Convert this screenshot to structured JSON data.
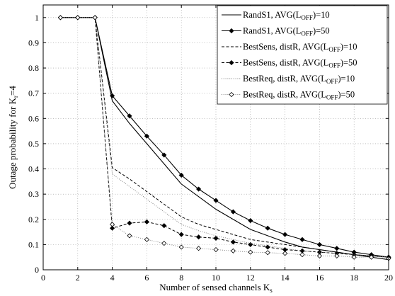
{
  "chart_data": {
    "type": "line",
    "xlabel": "Number of sensed channels K",
    "xlabel_sub": "s",
    "ylabel": "Outage probability for K",
    "ylabel_sub": "r",
    "ylabel_tail": "=4",
    "xlim": [
      0,
      20
    ],
    "ylim": [
      0,
      1.05
    ],
    "xticks": [
      0,
      2,
      4,
      6,
      8,
      10,
      12,
      14,
      16,
      18,
      20
    ],
    "yticks": [
      0,
      0.1,
      0.2,
      0.3,
      0.4,
      0.5,
      0.6,
      0.7,
      0.8,
      0.9,
      1
    ],
    "grid": true,
    "legend_position": "top-right",
    "x": [
      1,
      2,
      3,
      4,
      5,
      6,
      7,
      8,
      9,
      10,
      11,
      12,
      13,
      14,
      15,
      16,
      17,
      18,
      19,
      20
    ],
    "series": [
      {
        "name_pre": "RandS1, AVG(L",
        "name_sub": "OFF",
        "name_post": ")=10",
        "style": "solid",
        "marker": "none",
        "values": [
          1,
          1,
          1,
          0.67,
          0.58,
          0.5,
          0.42,
          0.34,
          0.29,
          0.24,
          0.2,
          0.16,
          0.135,
          0.11,
          0.09,
          0.08,
          0.07,
          0.06,
          0.05,
          0.04
        ]
      },
      {
        "name_pre": "RandS1, AVG(L",
        "name_sub": "OFF",
        "name_post": ")=50",
        "style": "solid",
        "marker": "diamond-filled",
        "values": [
          1,
          1,
          1,
          0.69,
          0.61,
          0.53,
          0.455,
          0.375,
          0.32,
          0.275,
          0.23,
          0.195,
          0.165,
          0.14,
          0.12,
          0.1,
          0.085,
          0.07,
          0.06,
          0.05
        ]
      },
      {
        "name_pre": "BestSens, distR, AVG(L",
        "name_sub": "OFF",
        "name_post": ")=10",
        "style": "dashed",
        "marker": "none",
        "values": [
          1,
          1,
          1,
          0.405,
          0.36,
          0.31,
          0.26,
          0.21,
          0.18,
          0.16,
          0.14,
          0.12,
          0.11,
          0.1,
          0.09,
          0.08,
          0.07,
          0.06,
          0.055,
          0.05
        ]
      },
      {
        "name_pre": "BestSens, distR, AVG(L",
        "name_sub": "OFF",
        "name_post": ")=50",
        "style": "dashed",
        "marker": "diamond-filled",
        "values": [
          1,
          1,
          1,
          0.165,
          0.185,
          0.19,
          0.175,
          0.14,
          0.13,
          0.125,
          0.11,
          0.1,
          0.09,
          0.08,
          0.075,
          0.07,
          0.065,
          0.06,
          0.055,
          0.05
        ]
      },
      {
        "name_pre": "BestReq, distR, AVG(L",
        "name_sub": "OFF",
        "name_post": ")=10",
        "style": "dotted",
        "marker": "none",
        "values": [
          1,
          1,
          1,
          0.38,
          0.33,
          0.28,
          0.23,
          0.18,
          0.155,
          0.135,
          0.12,
          0.105,
          0.095,
          0.085,
          0.075,
          0.07,
          0.065,
          0.06,
          0.055,
          0.05
        ]
      },
      {
        "name_pre": "BestReq, distR, AVG(L",
        "name_sub": "OFF",
        "name_post": ")=50",
        "style": "dotted",
        "marker": "diamond-open",
        "values": [
          1,
          1,
          1,
          0.18,
          0.135,
          0.12,
          0.105,
          0.09,
          0.085,
          0.08,
          0.075,
          0.07,
          0.068,
          0.065,
          0.06,
          0.055,
          0.055,
          0.05,
          0.05,
          0.045
        ]
      }
    ]
  }
}
